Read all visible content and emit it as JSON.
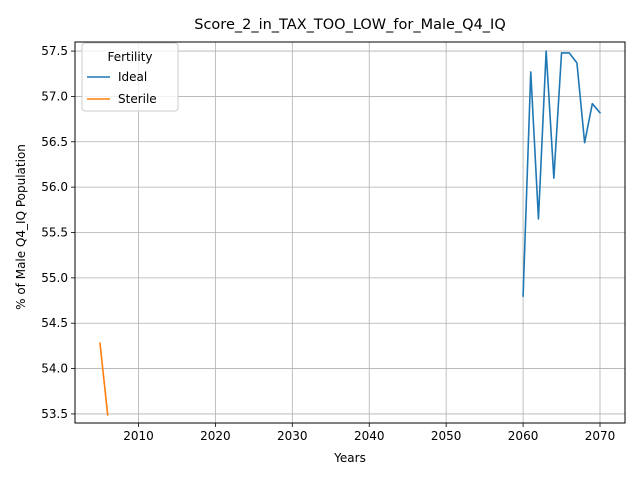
{
  "chart_data": {
    "type": "line",
    "title": "Score_2_in_TAX_TOO_LOW_for_Male_Q4_IQ",
    "xlabel": "Years",
    "ylabel": "% of Male Q4_IQ Population",
    "xlim": [
      2001.75,
      2073.25
    ],
    "ylim": [
      53.4,
      57.6
    ],
    "xticks": [
      2010,
      2020,
      2030,
      2040,
      2050,
      2060,
      2070
    ],
    "yticks": [
      53.5,
      54.0,
      54.5,
      55.0,
      55.5,
      56.0,
      56.5,
      57.0,
      57.5
    ],
    "grid": true,
    "legend": {
      "title": "Fertility",
      "placement": "upper-left"
    },
    "series": [
      {
        "name": "Ideal",
        "color": "#1f77b4",
        "x": [
          2060,
          2061,
          2062,
          2063,
          2064,
          2065,
          2066,
          2067,
          2068,
          2069,
          2070
        ],
        "y": [
          54.8,
          57.27,
          55.65,
          57.5,
          56.1,
          57.48,
          57.48,
          57.37,
          56.49,
          56.92,
          56.82
        ]
      },
      {
        "name": "Sterile",
        "color": "#ff7f0e",
        "x": [
          2005,
          2006
        ],
        "y": [
          54.28,
          53.49
        ]
      }
    ]
  }
}
